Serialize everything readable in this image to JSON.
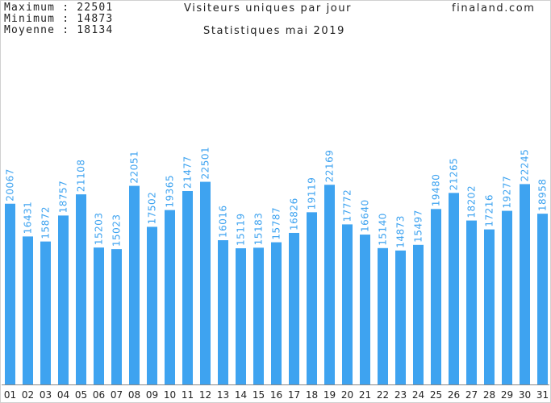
{
  "header": {
    "max_label": "Maximum",
    "max_value": "22501",
    "min_label": "Minimum",
    "min_value": "14873",
    "avg_label": "Moyenne",
    "avg_value": "18134",
    "title": "Visiteurs uniques par jour",
    "subtitle": "Statistiques mai 2019",
    "site": "finaland.com"
  },
  "colors": {
    "bar": "#3ea3f0",
    "label": "#3ea3f0",
    "text": "#222222",
    "baseline": "#888888"
  },
  "chart_data": {
    "type": "bar",
    "title": "Visiteurs uniques par jour",
    "subtitle": "Statistiques mai 2019",
    "categories": [
      "01",
      "02",
      "03",
      "04",
      "05",
      "06",
      "07",
      "08",
      "09",
      "10",
      "11",
      "12",
      "13",
      "14",
      "15",
      "16",
      "17",
      "18",
      "19",
      "20",
      "21",
      "22",
      "23",
      "24",
      "25",
      "26",
      "27",
      "28",
      "29",
      "30",
      "31"
    ],
    "values": [
      20067,
      16431,
      15872,
      18757,
      21108,
      15203,
      15023,
      22051,
      17502,
      19365,
      21477,
      22501,
      16016,
      15119,
      15183,
      15787,
      16826,
      19119,
      22169,
      17772,
      16640,
      15140,
      14873,
      15497,
      19480,
      21265,
      18202,
      17216,
      19277,
      22245,
      18958
    ],
    "ylim": [
      0,
      40000
    ],
    "grid": false
  }
}
